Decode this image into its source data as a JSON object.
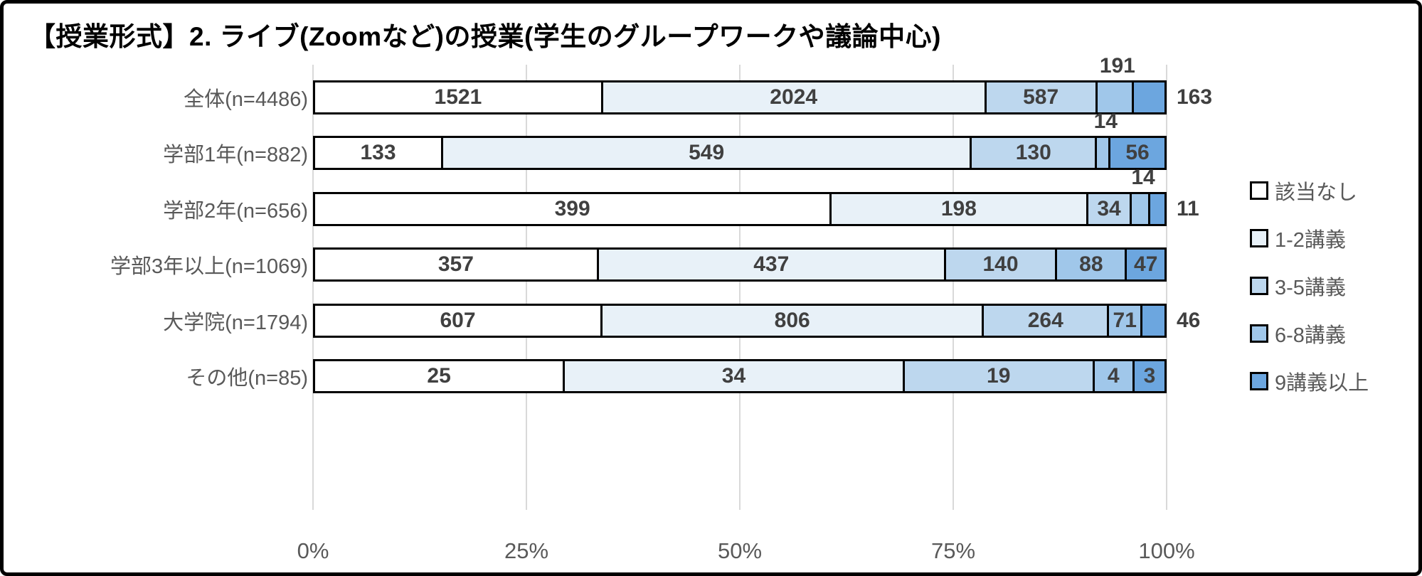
{
  "chart_data": {
    "type": "bar",
    "subtype": "horizontal-100pct-stacked",
    "title": "【授業形式】2. ライブ(Zoomなど)の授業(学生のグループワークや議論中心)",
    "categories": [
      "全体(n=4486)",
      "学部1年(n=882)",
      "学部2年(n=656)",
      "学部3年以上(n=1069)",
      "大学院(n=1794)",
      "その他(n=85)"
    ],
    "series": [
      {
        "name": "該当なし",
        "color": "#ffffff",
        "values": [
          1521,
          133,
          399,
          357,
          607,
          25
        ]
      },
      {
        "name": "1-2講義",
        "color": "#e8f1f8",
        "values": [
          2024,
          549,
          198,
          437,
          806,
          34
        ]
      },
      {
        "name": "3-5講義",
        "color": "#bdd7ee",
        "values": [
          587,
          130,
          34,
          140,
          264,
          19
        ]
      },
      {
        "name": "6-8講義",
        "color": "#a0c7ea",
        "values": [
          191,
          14,
          14,
          88,
          71,
          4
        ]
      },
      {
        "name": "9講義以上",
        "color": "#6ca6df",
        "values": [
          163,
          56,
          11,
          47,
          46,
          3
        ]
      }
    ],
    "row_totals": [
      4486,
      882,
      656,
      1069,
      1794,
      85
    ],
    "label_placements": [
      [
        "in",
        "in",
        "in",
        "above",
        "right"
      ],
      [
        "in",
        "in",
        "in",
        "above",
        "in"
      ],
      [
        "in",
        "in",
        "in",
        "above",
        "right"
      ],
      [
        "in",
        "in",
        "in",
        "in",
        "in"
      ],
      [
        "in",
        "in",
        "in",
        "in",
        "right"
      ],
      [
        "in",
        "in",
        "in",
        "in",
        "in"
      ]
    ],
    "x_ticks": [
      "0%",
      "25%",
      "50%",
      "75%",
      "100%"
    ],
    "xlim": [
      0,
      1
    ],
    "xlabel": "",
    "ylabel": "",
    "grid": true,
    "legend_position": "right",
    "colors": {
      "segment_border": "#000000",
      "grid_line": "#d9d9d9",
      "value_label_text": "#404040",
      "axis_text": "#595959",
      "category_text": "#595959",
      "title_text": "#000000",
      "outer_border": "#000000"
    }
  }
}
